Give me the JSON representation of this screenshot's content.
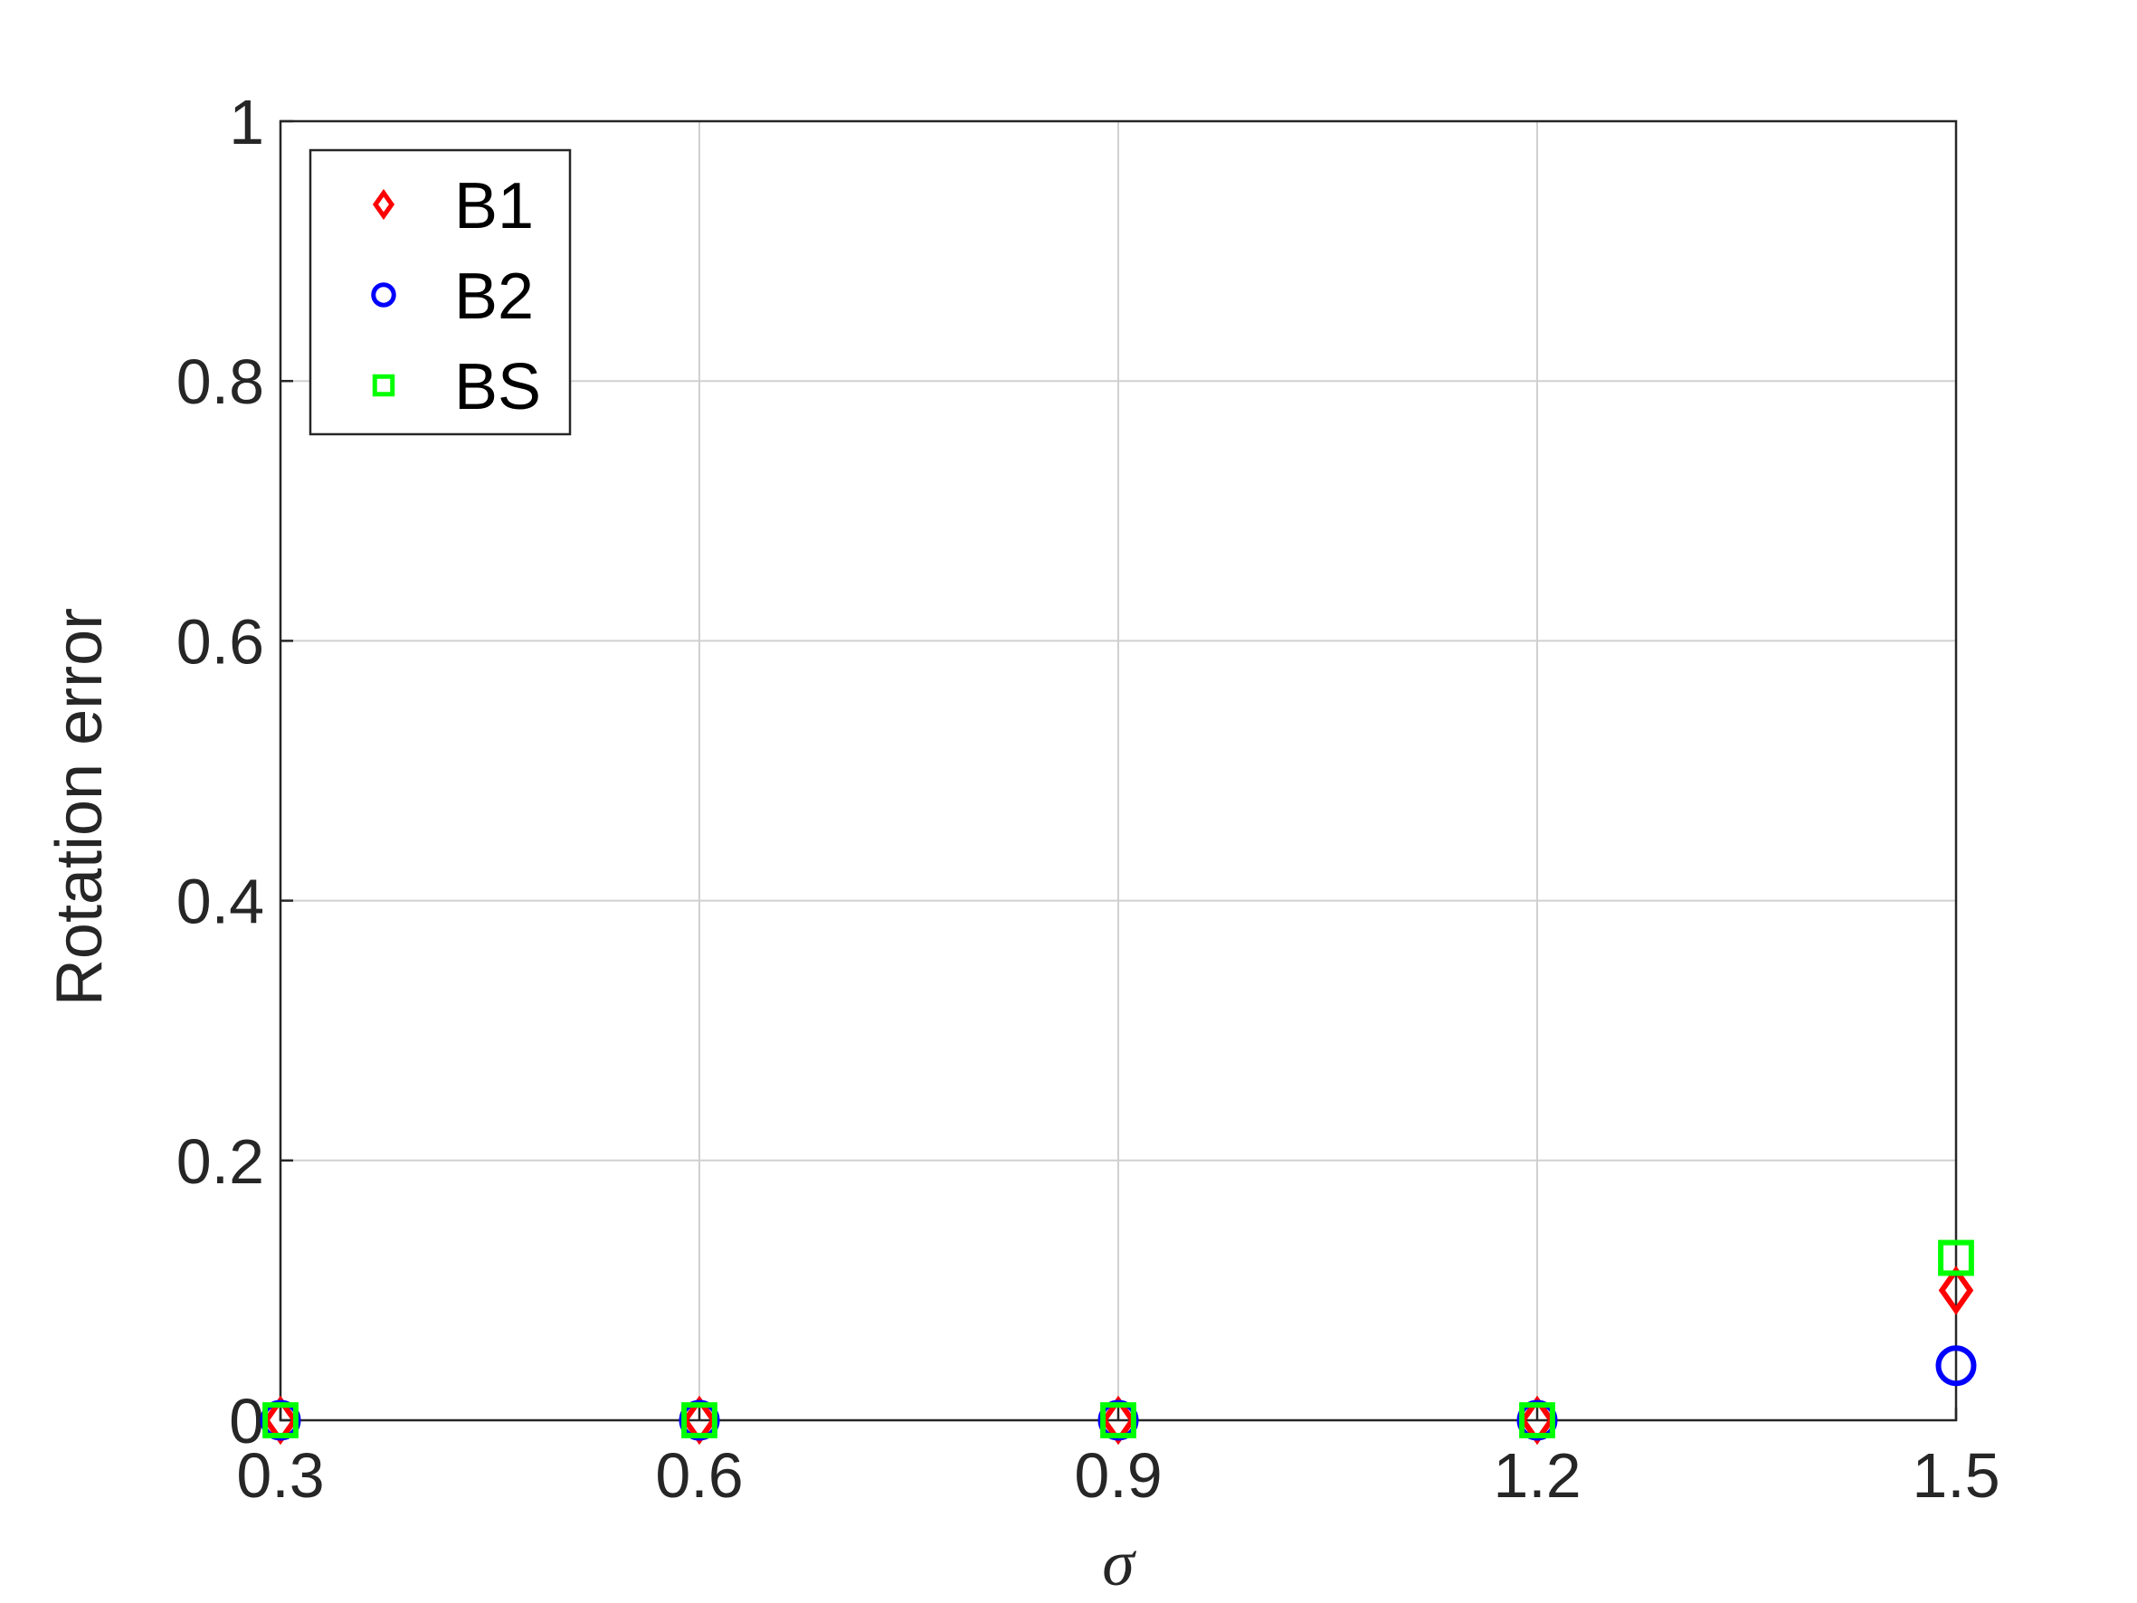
{
  "chart_data": {
    "type": "scatter",
    "xlabel": "σ",
    "ylabel": "Rotation error",
    "xlim": [
      0.3,
      1.5
    ],
    "ylim": [
      0,
      1
    ],
    "xticks": [
      "0.3",
      "0.6",
      "0.9",
      "1.2",
      "1.5"
    ],
    "yticks": [
      "0",
      "0.2",
      "0.4",
      "0.6",
      "0.8",
      "1"
    ],
    "grid": true,
    "legend_position": "top-left",
    "x": [
      0.3,
      0.6,
      0.9,
      1.2,
      1.5
    ],
    "series": [
      {
        "name": "B1",
        "marker": "diamond",
        "color": "#ff0000",
        "values": [
          0,
          0,
          0,
          0,
          0.1
        ]
      },
      {
        "name": "B2",
        "marker": "circle",
        "color": "#0000ff",
        "values": [
          0,
          0,
          0,
          0,
          0.042
        ]
      },
      {
        "name": "BS",
        "marker": "square",
        "color": "#00ff00",
        "values": [
          0,
          0,
          0,
          0,
          0.125
        ]
      }
    ]
  }
}
